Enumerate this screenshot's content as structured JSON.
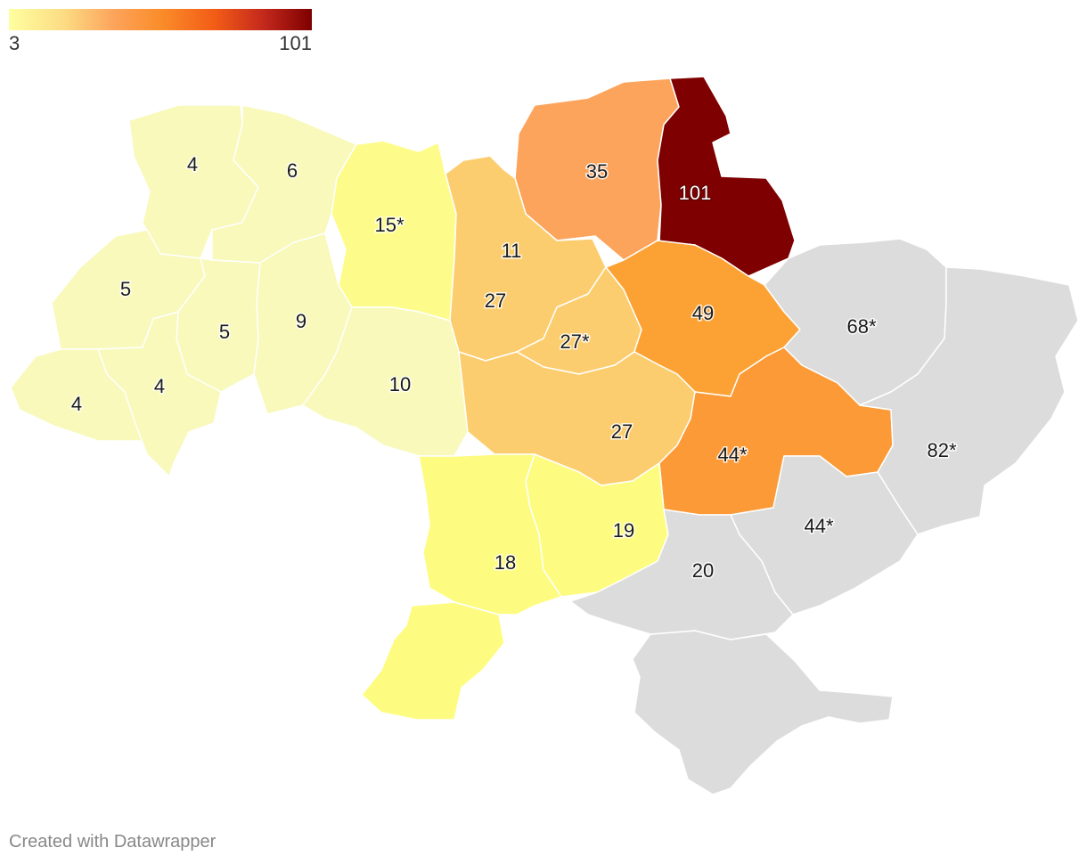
{
  "legend": {
    "min_label": "3",
    "max_label": "101",
    "min_color": "#feffa0",
    "max_color": "#7e0000"
  },
  "regions": {
    "r1": {
      "label": "4",
      "color": "#f8f9ba"
    },
    "r2": {
      "label": "6",
      "color": "#f8f9ba"
    },
    "r3": {
      "label": "15*",
      "color": "#fdfc8a"
    },
    "r4": {
      "label": "35",
      "color": "#fca45c"
    },
    "r5": {
      "label": "101",
      "color": "#7e0000"
    },
    "r6": {
      "label": "5",
      "color": "#f8f9ba"
    },
    "r7": {
      "label": "5",
      "color": "#f8f9ba"
    },
    "r8": {
      "label": "9",
      "color": "#f8f9ba"
    },
    "r9": {
      "label": "11",
      "color": "#fbfbbf"
    },
    "r10": {
      "label": "27",
      "color": "#fccd6e"
    },
    "r11": {
      "label": "27*",
      "color": "#fccd6e"
    },
    "r12": {
      "label": "49",
      "color": "#fca234"
    },
    "r13": {
      "label": "68*",
      "color": "#dcdcdc"
    },
    "r14": {
      "label": "4",
      "color": "#f8f9ba"
    },
    "r15": {
      "label": "4",
      "color": "#f8f9ba"
    },
    "r16": {
      "label": "10",
      "color": "#f8f9ba"
    },
    "r17": {
      "label": "27",
      "color": "#fccd6e"
    },
    "r18": {
      "label": "44*",
      "color": "#fb9a36"
    },
    "r19": {
      "label": "82*",
      "color": "#dcdcdc"
    },
    "r20": {
      "label": "19",
      "color": "#fdfc80"
    },
    "r21": {
      "label": "18",
      "color": "#fdfc80"
    },
    "r22": {
      "label": "20",
      "color": "#dcdcdc"
    },
    "r23": {
      "label": "44*",
      "color": "#dcdcdc"
    }
  },
  "footer": {
    "text": "Created with Datawrapper"
  }
}
